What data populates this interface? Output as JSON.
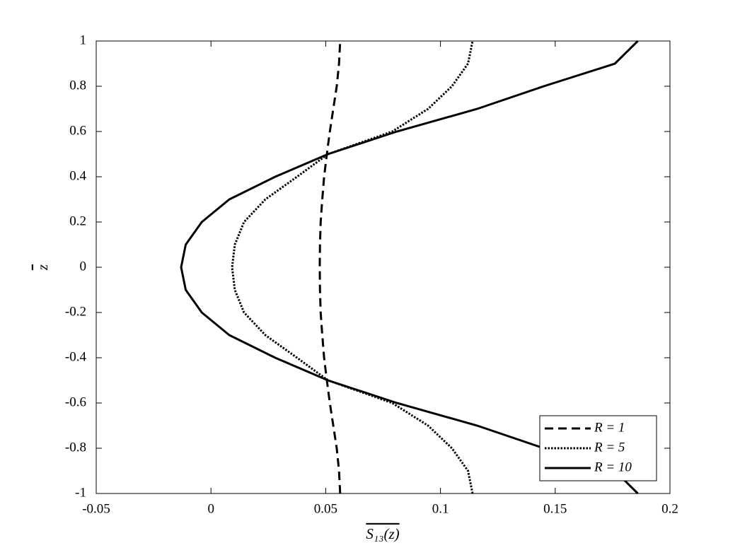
{
  "chart_data": {
    "type": "line",
    "x_label": "S₁₃(z)",
    "y_label": "z",
    "y": [
      -1,
      -0.9,
      -0.8,
      -0.7,
      -0.6,
      -0.5,
      -0.4,
      -0.3,
      -0.2,
      -0.1,
      0,
      0.1,
      0.2,
      0.3,
      0.4,
      0.5,
      0.6,
      0.7,
      0.8,
      0.9,
      1
    ],
    "series": [
      {
        "name": "R = 1",
        "color": "#000000",
        "style": "dashed",
        "values": [
          0.0563,
          0.0558,
          0.0548,
          0.0533,
          0.0518,
          0.0505,
          0.0493,
          0.0485,
          0.0478,
          0.0475,
          0.0474,
          0.0475,
          0.0478,
          0.0485,
          0.0493,
          0.0505,
          0.0518,
          0.0533,
          0.0548,
          0.0558,
          0.0563
        ]
      },
      {
        "name": "R = 5",
        "color": "#000000",
        "style": "dotted",
        "values": [
          0.114,
          0.112,
          0.105,
          0.0946,
          0.079,
          0.051,
          0.0375,
          0.0237,
          0.0144,
          0.0104,
          0.0092,
          0.0104,
          0.0144,
          0.0237,
          0.0375,
          0.051,
          0.079,
          0.0946,
          0.105,
          0.112,
          0.114
        ]
      },
      {
        "name": "R = 10",
        "color": "#000000",
        "style": "solid",
        "values": [
          0.186,
          0.176,
          0.145,
          0.116,
          0.081,
          0.051,
          0.028,
          0.008,
          -0.004,
          -0.011,
          -0.013,
          -0.011,
          -0.004,
          0.008,
          0.028,
          0.051,
          0.081,
          0.116,
          0.145,
          0.176,
          0.186
        ]
      }
    ],
    "xlim": [
      -0.05,
      0.2
    ],
    "xticks": [
      -0.05,
      0,
      0.05,
      0.1,
      0.15,
      0.2
    ],
    "ylim": [
      -1,
      1
    ],
    "yticks": [
      -1,
      -0.8,
      -0.6,
      -0.4,
      -0.2,
      0,
      0.2,
      0.4,
      0.6,
      0.8,
      1
    ],
    "grid": false,
    "legend": "lower right"
  }
}
